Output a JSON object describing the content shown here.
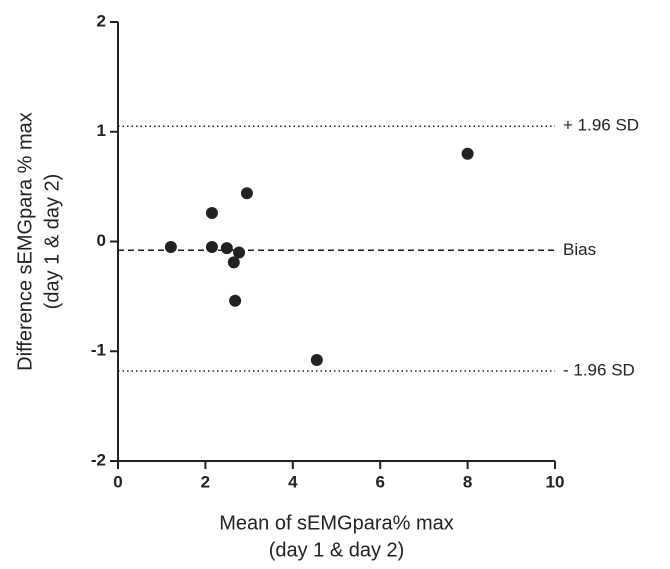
{
  "chart_data": {
    "type": "scatter",
    "xlabel": [
      "Mean of sEMGpara% max",
      "(day 1 & day 2)"
    ],
    "ylabel": [
      "Difference sEMGpara % max",
      "(day 1 & day 2)"
    ],
    "x": [
      1.21,
      2.15,
      2.15,
      2.49,
      2.65,
      2.77,
      2.68,
      2.95,
      4.55,
      8.0
    ],
    "values": [
      -0.05,
      0.26,
      -0.05,
      -0.06,
      -0.19,
      -0.1,
      -0.54,
      0.44,
      -1.08,
      0.8
    ],
    "color": "#222222",
    "xlim": [
      0,
      10
    ],
    "xticks": [
      0,
      2,
      4,
      6,
      8,
      10
    ],
    "ylim": [
      -2,
      2
    ],
    "yticks": [
      -2,
      -1,
      0,
      1,
      2
    ],
    "reference_lines": [
      {
        "value": 1.05,
        "label": "+ 1.96 SD",
        "style": "dotted"
      },
      {
        "value": -0.08,
        "label": "Bias",
        "style": "dashed"
      },
      {
        "value": -1.18,
        "label": "- 1.96 SD",
        "style": "dotted"
      }
    ]
  }
}
